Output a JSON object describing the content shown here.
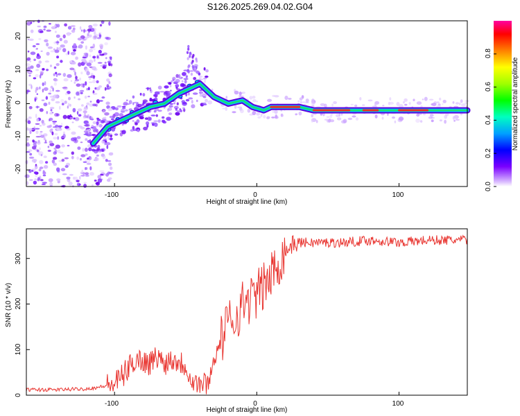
{
  "title": "S126.2025.269.04.02.G04",
  "chart_data": [
    {
      "type": "heatmap",
      "xlabel": "Height of straight line (km)",
      "ylabel": "Frequency (Hz)",
      "xlim": [
        -162,
        148
      ],
      "ylim": [
        -25,
        25
      ],
      "x_ticks": [
        "-100",
        "0",
        "100"
      ],
      "y_ticks": [
        "20",
        "10",
        "0",
        "-10",
        "-20"
      ],
      "colorbar": {
        "label": "Normalized spectral amplitude",
        "range": [
          0,
          1
        ],
        "ticks": [
          "0.0",
          "0.2",
          "0.4",
          "0.6",
          "0.8"
        ]
      },
      "ridge": [
        {
          "x": -115,
          "y": -12
        },
        {
          "x": -105,
          "y": -7
        },
        {
          "x": -95,
          "y": -5
        },
        {
          "x": -85,
          "y": -3
        },
        {
          "x": -75,
          "y": -1
        },
        {
          "x": -65,
          "y": 0
        },
        {
          "x": -55,
          "y": 3
        },
        {
          "x": -45,
          "y": 5
        },
        {
          "x": -40,
          "y": 6
        },
        {
          "x": -35,
          "y": 4
        },
        {
          "x": -30,
          "y": 2
        },
        {
          "x": -20,
          "y": 0
        },
        {
          "x": -10,
          "y": 1
        },
        {
          "x": -3,
          "y": -1
        },
        {
          "x": 5,
          "y": -2
        },
        {
          "x": 10,
          "y": -1
        },
        {
          "x": 20,
          "y": -1
        },
        {
          "x": 30,
          "y": -1
        },
        {
          "x": 40,
          "y": -2
        },
        {
          "x": 60,
          "y": -2
        },
        {
          "x": 80,
          "y": -2
        },
        {
          "x": 95,
          "y": -2
        },
        {
          "x": 110,
          "y": -2
        },
        {
          "x": 125,
          "y": -2
        },
        {
          "x": 148,
          "y": -2
        }
      ],
      "peak_segments": [
        {
          "x_start": 10,
          "x_end": 30,
          "y": -1
        },
        {
          "x_start": 40,
          "x_end": 65,
          "y": -2
        },
        {
          "x_start": 75,
          "x_end": 85,
          "y": -2
        },
        {
          "x_start": 100,
          "x_end": 120,
          "y": -2
        }
      ]
    },
    {
      "type": "line",
      "xlabel": "Height of straight line (km)",
      "ylabel": "SNR (10 * v/v)",
      "xlim": [
        -162,
        148
      ],
      "ylim": [
        0,
        365
      ],
      "x_ticks": [
        "-100",
        "0",
        "100"
      ],
      "y_ticks": [
        "300",
        "200",
        "100",
        "0"
      ],
      "color": "#e8322d",
      "series": [
        {
          "x": [
            -162,
            -140,
            -120,
            -110,
            -100,
            -95,
            -90,
            -85,
            -80,
            -75,
            -70,
            -65,
            -60,
            -55,
            -50,
            -45,
            -40,
            -35,
            -33,
            -30,
            -25,
            -20,
            -15,
            -10,
            -5,
            0,
            5,
            10,
            15,
            20,
            25,
            30,
            40,
            60,
            80,
            100,
            120,
            148
          ],
          "y": [
            12,
            12,
            14,
            18,
            25,
            40,
            60,
            80,
            75,
            70,
            85,
            70,
            80,
            75,
            65,
            30,
            25,
            25,
            40,
            80,
            120,
            160,
            170,
            200,
            210,
            220,
            240,
            260,
            290,
            315,
            330,
            335,
            335,
            335,
            340,
            335,
            340,
            340
          ]
        }
      ]
    }
  ]
}
